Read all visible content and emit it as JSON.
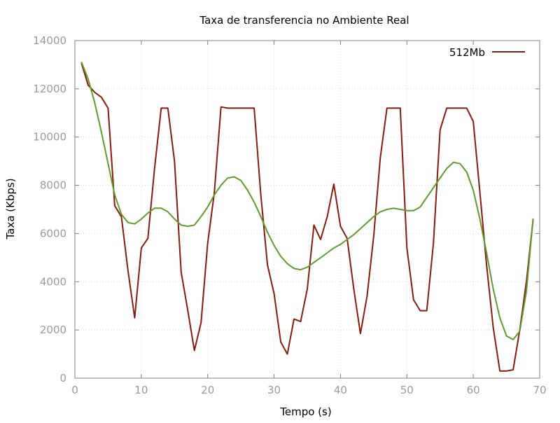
{
  "chart_data": {
    "type": "line",
    "title": "Taxa de transferencia no Ambiente Real",
    "xlabel": "Tempo (s)",
    "ylabel": "Taxa (Kbps)",
    "xlim": [
      0,
      70
    ],
    "ylim": [
      0,
      14000
    ],
    "x_ticks": [
      0,
      10,
      20,
      30,
      40,
      50,
      60,
      70
    ],
    "y_ticks": [
      0,
      2000,
      4000,
      6000,
      8000,
      10000,
      12000,
      14000
    ],
    "grid": true,
    "legend_position": "top-right",
    "series": [
      {
        "name": "512Mb",
        "color": "#8b1a0e",
        "x": [
          1,
          2,
          3,
          4,
          5,
          6,
          7,
          8,
          9,
          10,
          11,
          12,
          13,
          14,
          15,
          16,
          17,
          18,
          19,
          20,
          21,
          22,
          23,
          24,
          25,
          26,
          27,
          28,
          29,
          30,
          31,
          32,
          33,
          34,
          35,
          36,
          37,
          38,
          39,
          40,
          41,
          42,
          43,
          44,
          45,
          46,
          47,
          48,
          49,
          50,
          51,
          52,
          53,
          54,
          55,
          56,
          57,
          58,
          59,
          60,
          61,
          62,
          63,
          64,
          65,
          66,
          67,
          68,
          69
        ],
        "y": [
          13050,
          12150,
          11850,
          11650,
          11200,
          7150,
          6700,
          4450,
          2500,
          5400,
          5800,
          8700,
          11200,
          11200,
          9000,
          4400,
          2800,
          1150,
          2300,
          5600,
          7700,
          11250,
          11200,
          11200,
          11200,
          11200,
          11200,
          7600,
          4700,
          3500,
          1500,
          1000,
          2450,
          2350,
          3700,
          6350,
          5750,
          6700,
          8050,
          6300,
          5800,
          3700,
          1850,
          3400,
          5900,
          9150,
          11200,
          11200,
          11200,
          5400,
          3250,
          2800,
          2800,
          5600,
          10300,
          11200,
          11200,
          11200,
          11200,
          10650,
          7700,
          4700,
          2100,
          300,
          300,
          350,
          2000,
          4000,
          6550
        ]
      },
      {
        "name": "",
        "color": "#5e9c2e",
        "x": [
          1,
          2,
          3,
          4,
          5,
          6,
          7,
          8,
          9,
          10,
          11,
          12,
          13,
          14,
          15,
          16,
          17,
          18,
          19,
          20,
          21,
          22,
          23,
          24,
          25,
          26,
          27,
          28,
          29,
          30,
          31,
          32,
          33,
          34,
          35,
          36,
          37,
          38,
          39,
          40,
          41,
          42,
          43,
          44,
          45,
          46,
          47,
          48,
          49,
          50,
          51,
          52,
          53,
          54,
          55,
          56,
          57,
          58,
          59,
          60,
          61,
          62,
          63,
          64,
          65,
          66,
          67,
          68,
          69
        ],
        "y": [
          13100,
          12400,
          11400,
          10200,
          8900,
          7600,
          6800,
          6450,
          6400,
          6600,
          6850,
          7050,
          7050,
          6900,
          6600,
          6350,
          6300,
          6350,
          6700,
          7100,
          7600,
          8000,
          8300,
          8350,
          8200,
          7800,
          7300,
          6700,
          6050,
          5500,
          5050,
          4750,
          4550,
          4500,
          4600,
          4800,
          5000,
          5200,
          5400,
          5550,
          5750,
          5950,
          6200,
          6450,
          6700,
          6900,
          7000,
          7050,
          7000,
          6950,
          6950,
          7100,
          7500,
          7900,
          8300,
          8700,
          8950,
          8900,
          8550,
          7800,
          6600,
          5200,
          3700,
          2500,
          1750,
          1600,
          1950,
          3600,
          6600
        ]
      }
    ]
  }
}
